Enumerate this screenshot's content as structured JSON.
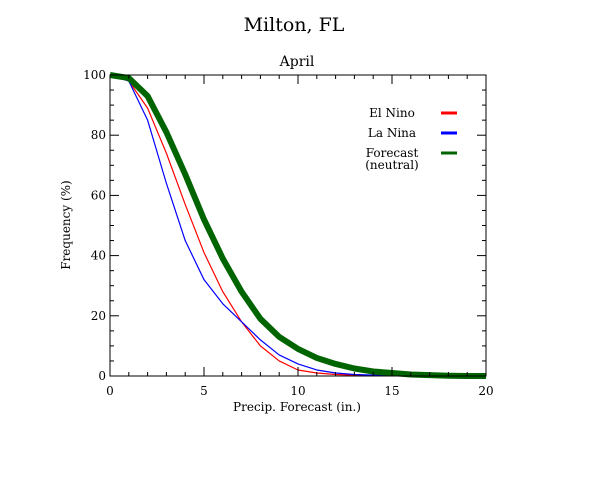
{
  "chart_data": {
    "type": "line",
    "title": "Milton, FL",
    "subtitle": "April",
    "xlabel": "Precip. Forecast (in.)",
    "ylabel": "Frequency (%)",
    "xlim": [
      0,
      20
    ],
    "ylim": [
      0,
      100
    ],
    "xticks": [
      "0",
      "5",
      "10",
      "15",
      "20"
    ],
    "yticks": [
      "0",
      "20",
      "40",
      "60",
      "80",
      "100"
    ],
    "grid": false,
    "legend_position": "top-right",
    "series": [
      {
        "name": "El Nino",
        "color": "#ff0000",
        "line_weight": "thin",
        "x": [
          0,
          1,
          2,
          3,
          4,
          5,
          6,
          7,
          8,
          9,
          10,
          11,
          12,
          13,
          14,
          15,
          16,
          17,
          18,
          19,
          20
        ],
        "y": [
          100,
          98,
          89,
          74,
          57,
          41,
          28,
          18,
          10,
          5,
          2,
          1,
          0.5,
          0.3,
          0.2,
          0.1,
          0,
          0,
          0,
          0,
          0
        ]
      },
      {
        "name": "La Nina",
        "color": "#0000ff",
        "line_weight": "thin",
        "x": [
          0,
          1,
          2,
          3,
          4,
          5,
          6,
          7,
          8,
          9,
          10,
          11,
          12,
          13,
          14,
          15,
          16,
          17,
          18,
          19,
          20
        ],
        "y": [
          100,
          98,
          85,
          64,
          45,
          32,
          24,
          18,
          12,
          7,
          4,
          2,
          1,
          0.5,
          0.3,
          0.2,
          0.1,
          0,
          0,
          0,
          0
        ]
      },
      {
        "name": "Forecast (neutral)",
        "color": "#006400",
        "line_weight": "thick",
        "x": [
          0,
          1,
          2,
          3,
          4,
          5,
          6,
          7,
          8,
          9,
          10,
          11,
          12,
          13,
          14,
          15,
          16,
          17,
          18,
          19,
          20
        ],
        "y": [
          100,
          99,
          93,
          81,
          67,
          52,
          39,
          28,
          19,
          13,
          9,
          6,
          4,
          2.5,
          1.5,
          1,
          0.5,
          0.3,
          0.1,
          0,
          0
        ]
      }
    ],
    "legend": [
      {
        "label_line1": "El Nino",
        "label_line2": "",
        "color": "#ff0000"
      },
      {
        "label_line1": "La Nina",
        "label_line2": "",
        "color": "#0000ff"
      },
      {
        "label_line1": "Forecast",
        "label_line2": "(neutral)",
        "color": "#006400"
      }
    ]
  }
}
